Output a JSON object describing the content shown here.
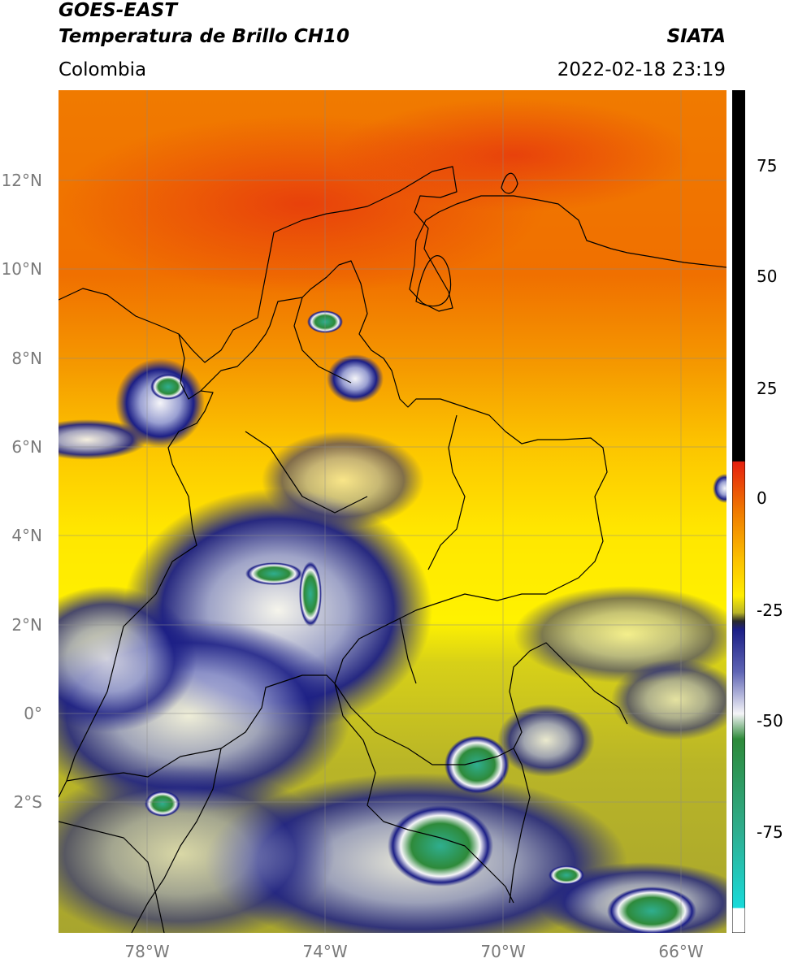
{
  "header": {
    "satellite": "GOES-EAST",
    "product": "Temperatura de Brillo CH10",
    "agency": "SIATA",
    "region": "Colombia",
    "datetime": "2022-02-18 23:19"
  },
  "map": {
    "lat_ticks": [
      "12°N",
      "10°N",
      "8°N",
      "6°N",
      "4°N",
      "2°N",
      "0°",
      "2°S"
    ],
    "lon_ticks": [
      "78°W",
      "74°W",
      "70°W",
      "66°W"
    ]
  },
  "colorbar": {
    "ticks": [
      "75",
      "50",
      "25",
      "0",
      "-25",
      "-50",
      "-75"
    ],
    "colors": {
      "black": "#000000",
      "red": "#e5200f",
      "orange": "#f08a00",
      "yellow": "#ffee00",
      "olive": "#b9b527",
      "navy": "#1c1f86",
      "white": "#f5f5f8",
      "green": "#2e8a3a",
      "teal": "#2fae8f",
      "cyan": "#19dada"
    }
  }
}
